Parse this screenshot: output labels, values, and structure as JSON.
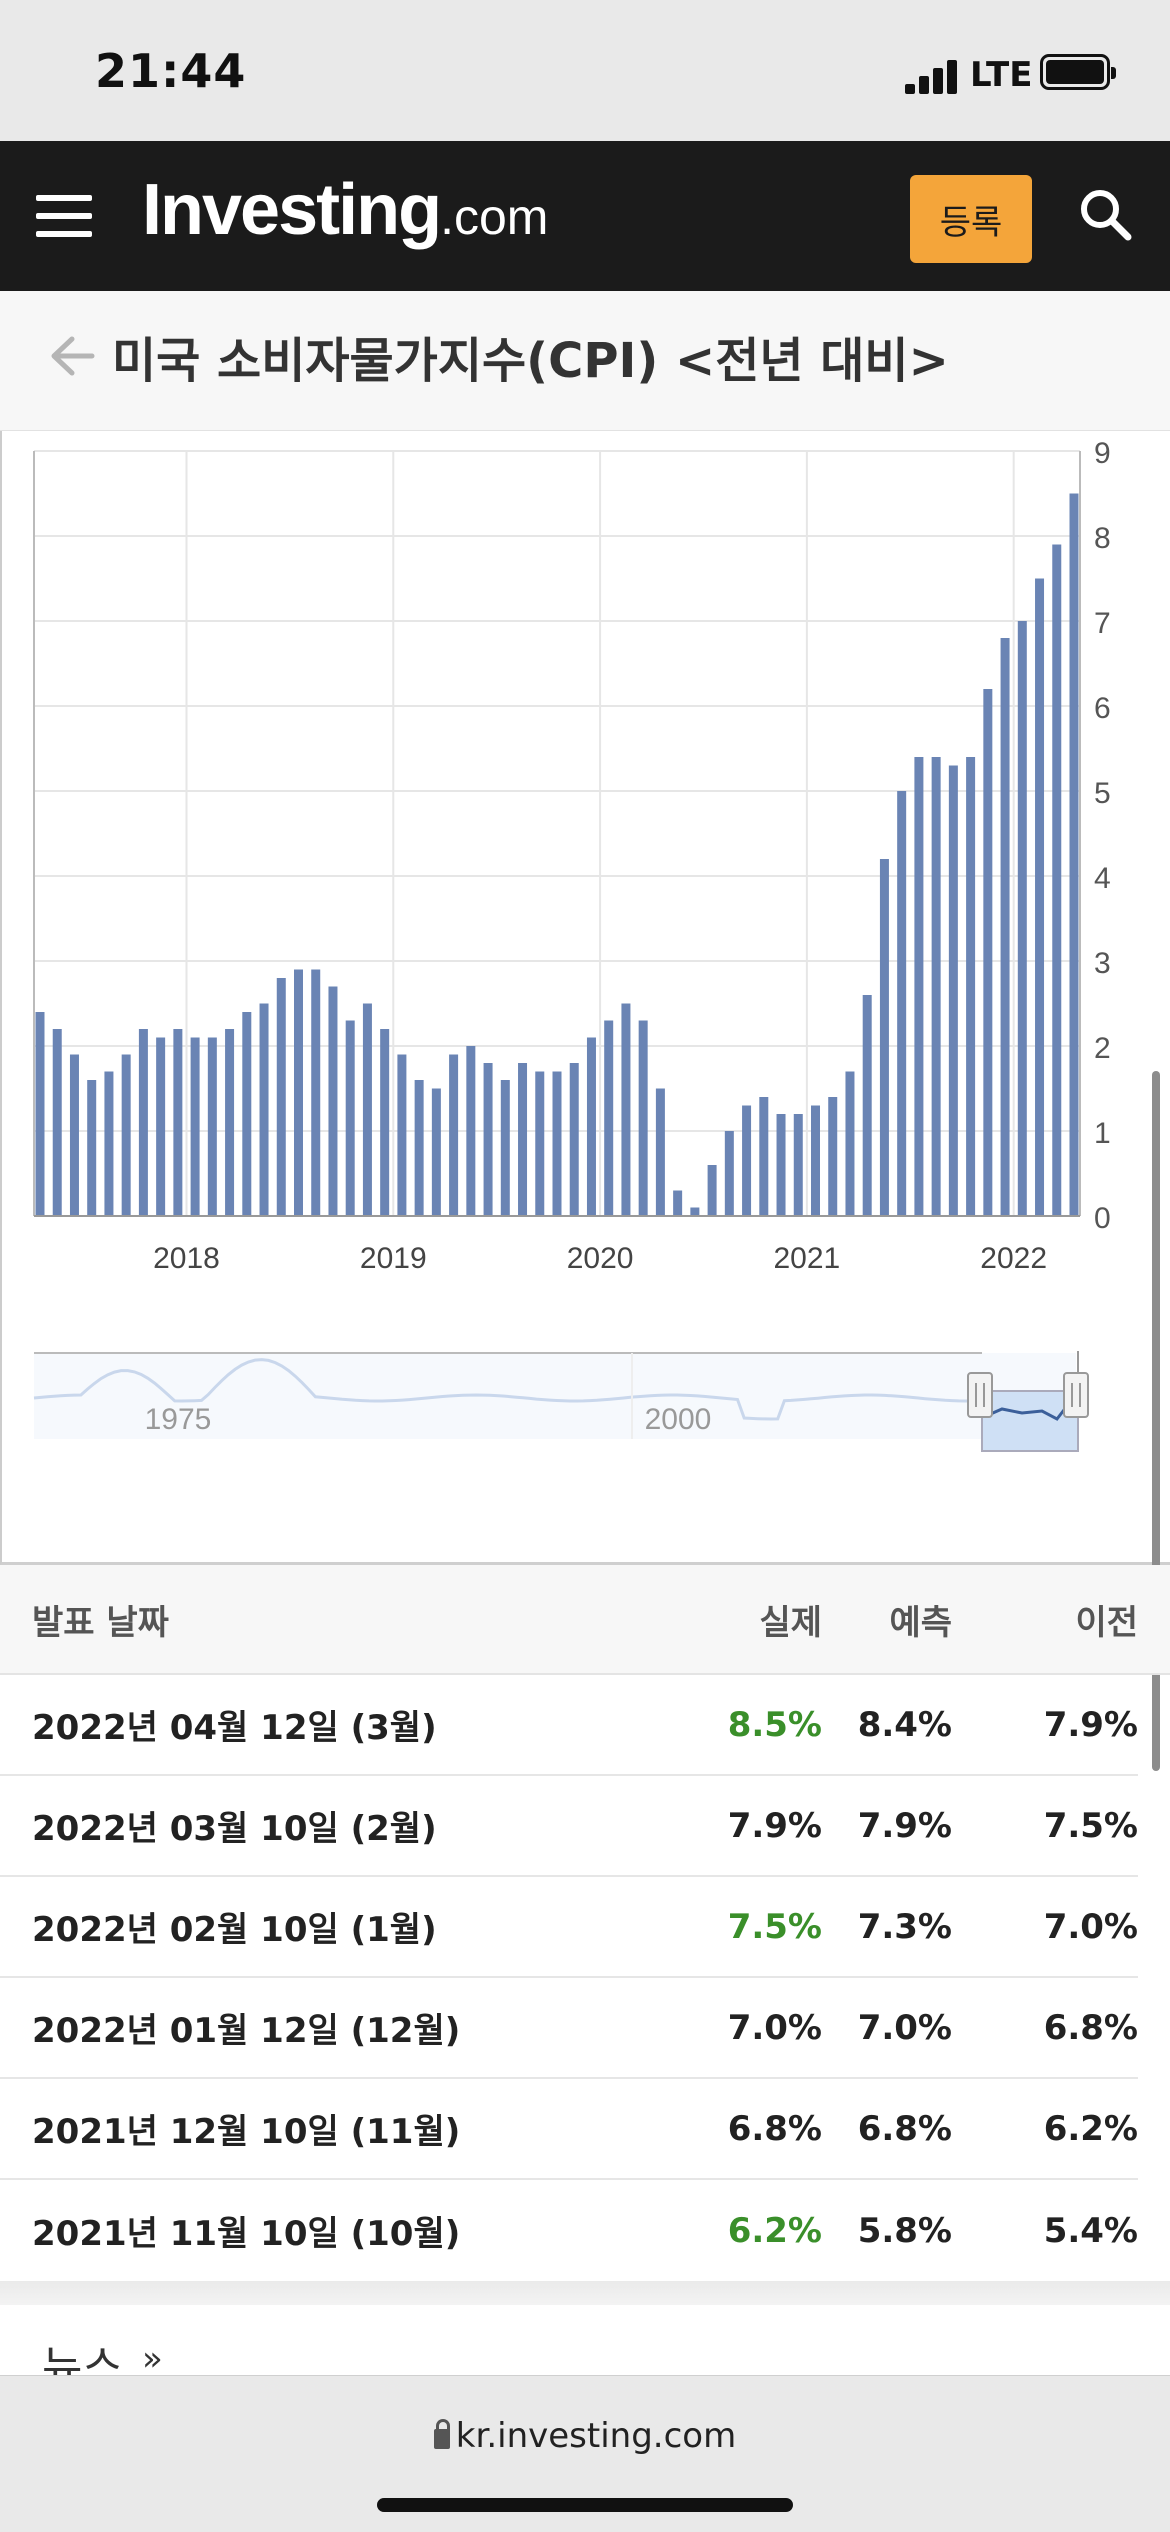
{
  "status_bar": {
    "time": "21:44",
    "network": "LTE"
  },
  "header": {
    "logo_main": "Investing",
    "logo_suffix": ".com",
    "register_label": "등록"
  },
  "page": {
    "title": "미국 소비자물가지수(CPI) <전년 대비>"
  },
  "chart_data": {
    "type": "bar",
    "ylim": [
      0,
      9
    ],
    "y_ticks": [
      0,
      1,
      2,
      3,
      4,
      5,
      6,
      7,
      8,
      9
    ],
    "x_tick_labels": [
      "2018",
      "2019",
      "2020",
      "2021",
      "2022"
    ],
    "series_color": "#6a84b4",
    "values": [
      2.4,
      2.2,
      1.9,
      1.6,
      1.7,
      1.9,
      2.2,
      2.1,
      2.2,
      2.1,
      2.1,
      2.2,
      2.4,
      2.5,
      2.8,
      2.9,
      2.9,
      2.7,
      2.3,
      2.5,
      2.2,
      1.9,
      1.6,
      1.5,
      1.9,
      2.0,
      1.8,
      1.6,
      1.8,
      1.7,
      1.7,
      1.8,
      2.1,
      2.3,
      2.5,
      2.3,
      1.5,
      0.3,
      0.1,
      0.6,
      1.0,
      1.3,
      1.4,
      1.2,
      1.2,
      1.3,
      1.4,
      1.7,
      2.6,
      4.2,
      5.0,
      5.4,
      5.4,
      5.3,
      5.4,
      6.2,
      6.8,
      7.0,
      7.5,
      7.9,
      8.5
    ],
    "navigator_labels": [
      "1975",
      "2000"
    ]
  },
  "table": {
    "headers": {
      "date": "발표 날짜",
      "actual": "실제",
      "forecast": "예측",
      "previous": "이전"
    },
    "rows": [
      {
        "date": "2022년 04월 12일 (3월)",
        "actual": "8.5%",
        "forecast": "8.4%",
        "previous": "7.9%"
      },
      {
        "date": "2022년 03월 10일 (2월)",
        "actual": "7.9%",
        "forecast": "7.9%",
        "previous": "7.5%"
      },
      {
        "date": "2022년 02월 10일 (1월)",
        "actual": "7.5%",
        "forecast": "7.3%",
        "previous": "7.0%"
      },
      {
        "date": "2022년 01월 12일 (12월)",
        "actual": "7.0%",
        "forecast": "7.0%",
        "previous": "6.8%"
      },
      {
        "date": "2021년 12월 10일 (11월)",
        "actual": "6.8%",
        "forecast": "6.8%",
        "previous": "6.2%"
      },
      {
        "date": "2021년 11월 10일 (10월)",
        "actual": "6.2%",
        "forecast": "5.8%",
        "previous": "5.4%"
      }
    ]
  },
  "news": {
    "label": "뉴스",
    "arrow": "»"
  },
  "browser": {
    "url": "kr.investing.com"
  }
}
